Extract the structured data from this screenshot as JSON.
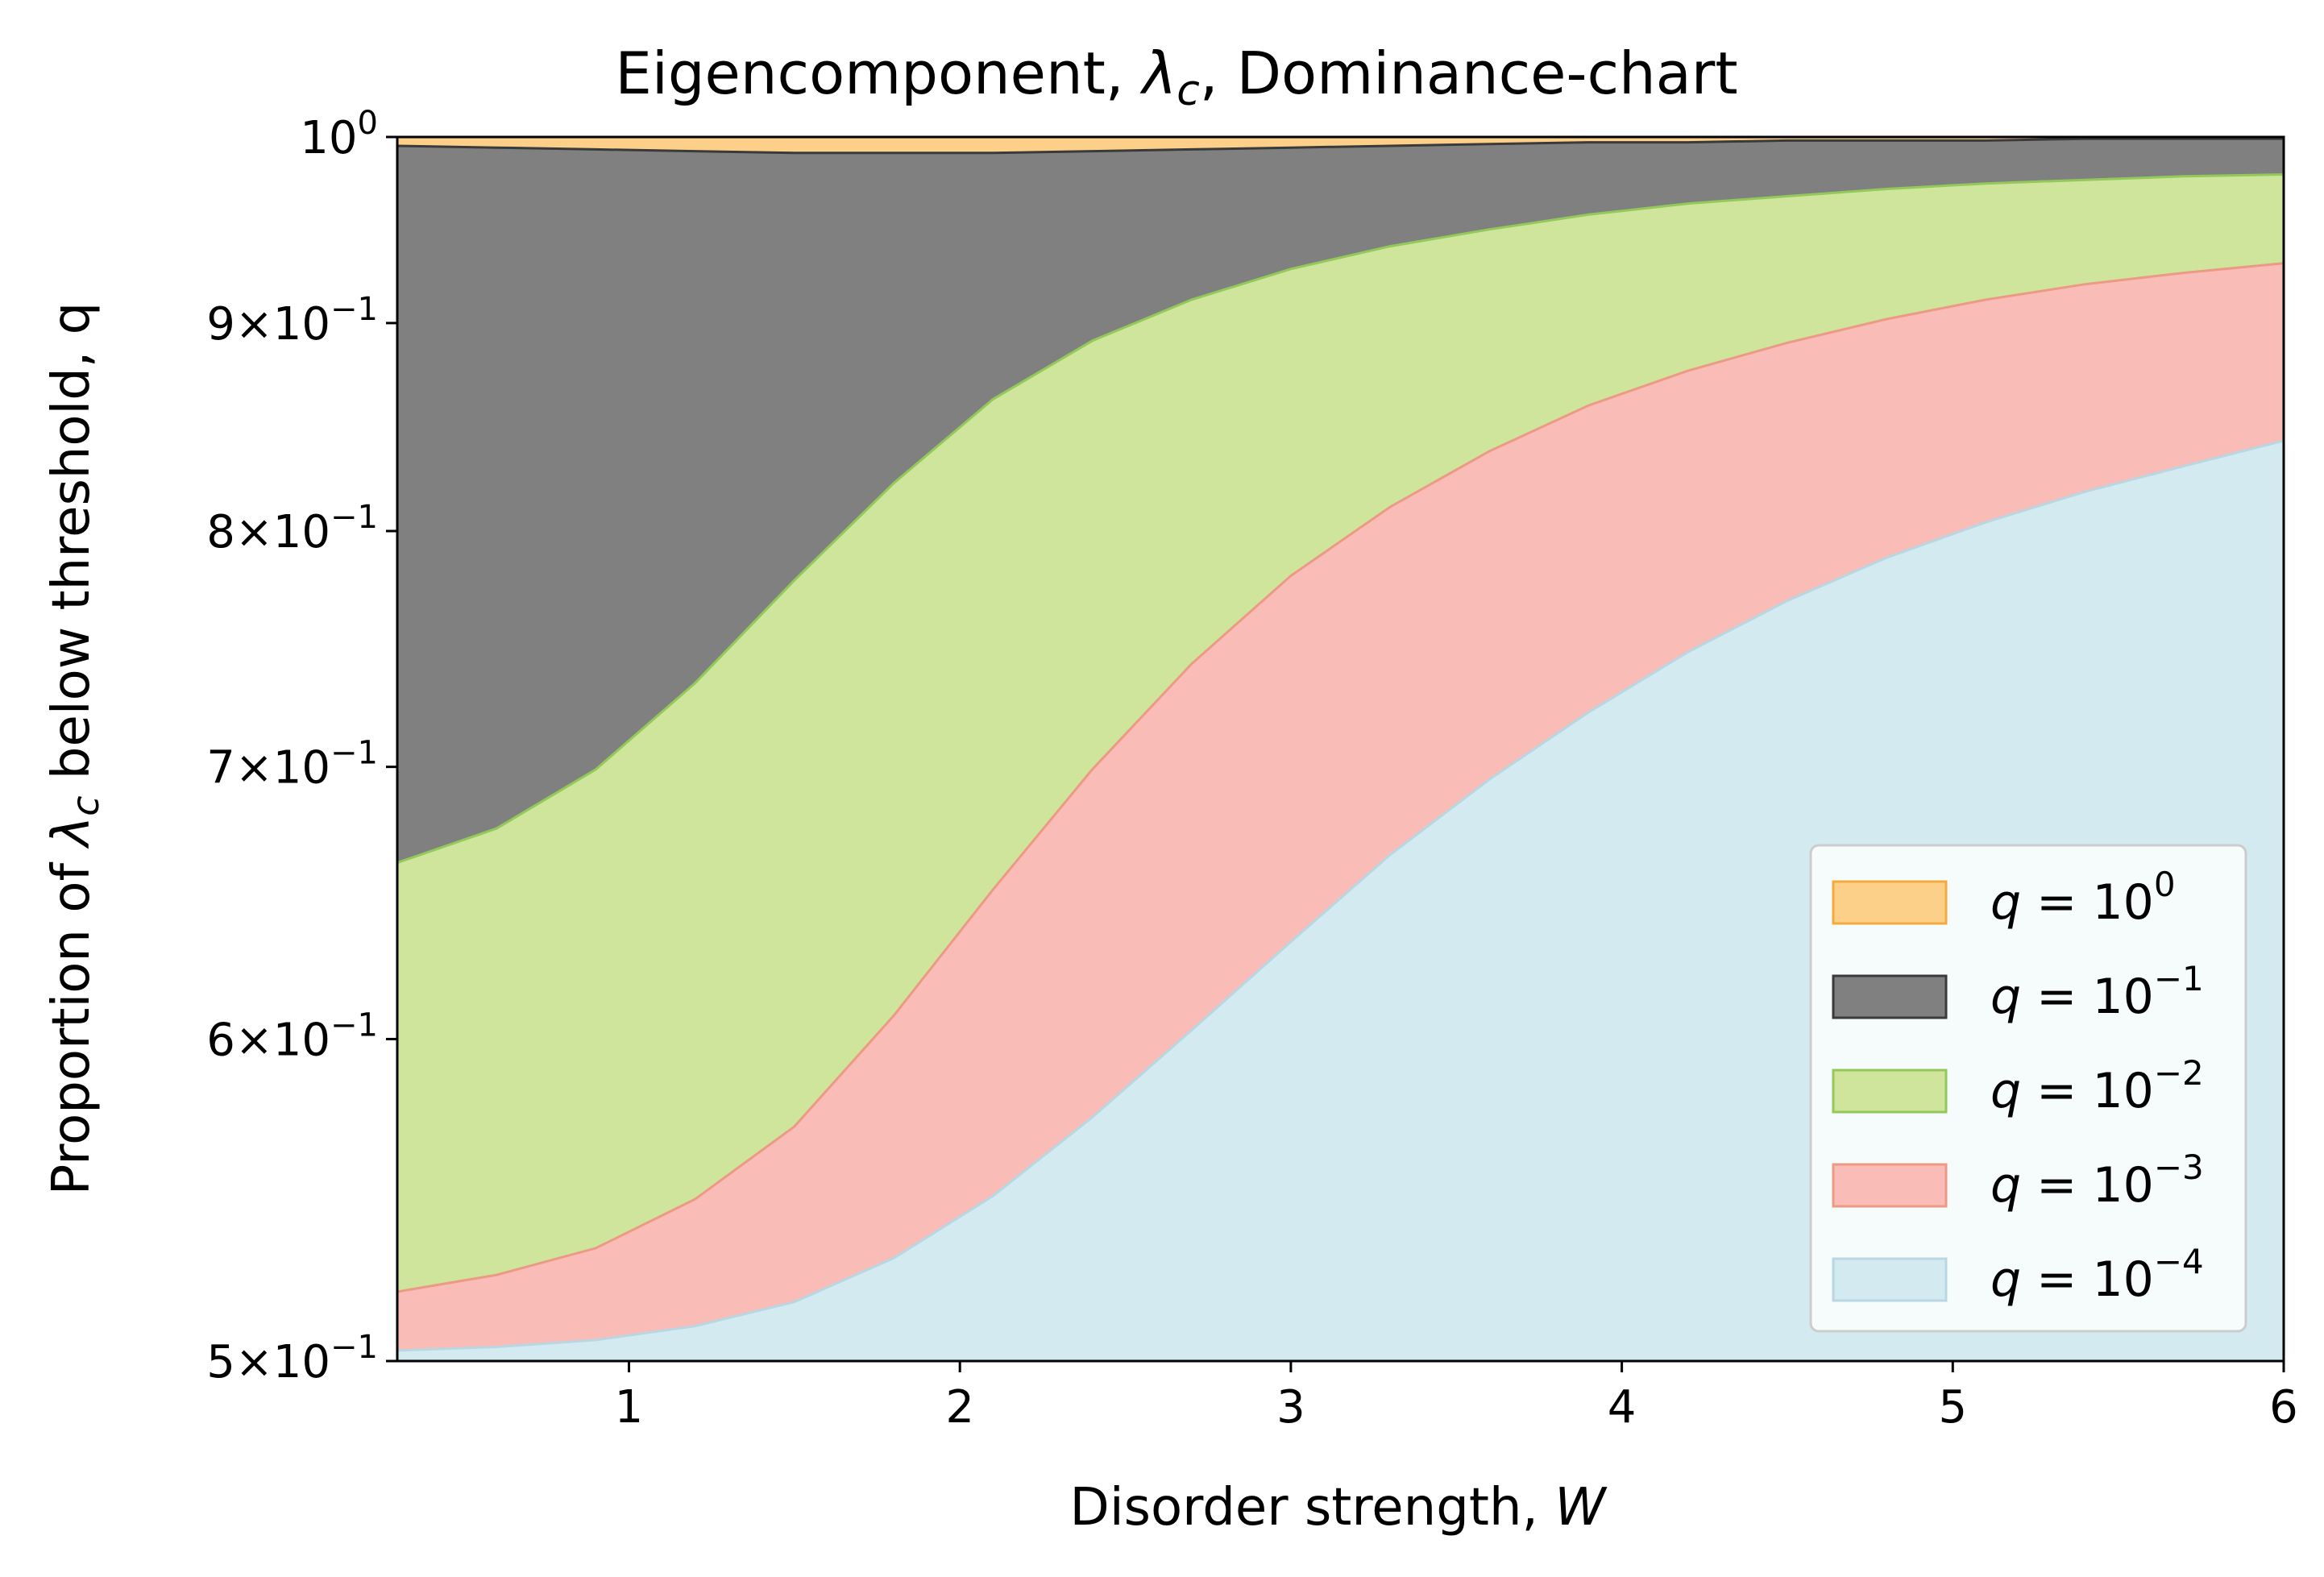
{
  "chart_data": {
    "type": "area",
    "title": "Eigencomponent, λc, Dominance-chart",
    "title_parts": {
      "pre": "Eigencomponent, ",
      "sym": "λ",
      "sub": "c",
      "post": ", Dominance-chart"
    },
    "xlabel": "Disorder strength, W",
    "xlabel_parts": {
      "pre": "Disorder strength, ",
      "sym": "W"
    },
    "ylabel": "Proportion of λc below threshold, q",
    "ylabel_parts": {
      "pre": "Proportion of ",
      "sym": "λ",
      "sub": "c",
      "post": " below threshold, q"
    },
    "xlim": [
      0.3,
      6.0
    ],
    "ylim": [
      0.5,
      1.0
    ],
    "yscale": "log",
    "grid": false,
    "legend_position": "lower-right",
    "x_ticks": [
      {
        "value": 1,
        "label": "1"
      },
      {
        "value": 2,
        "label": "2"
      },
      {
        "value": 3,
        "label": "3"
      },
      {
        "value": 4,
        "label": "4"
      },
      {
        "value": 5,
        "label": "5"
      },
      {
        "value": 6,
        "label": "6"
      }
    ],
    "y_ticks": [
      {
        "value": 0.5,
        "mant": "5",
        "exp": "−1"
      },
      {
        "value": 0.6,
        "mant": "6",
        "exp": "−1"
      },
      {
        "value": 0.7,
        "mant": "7",
        "exp": "−1"
      },
      {
        "value": 0.8,
        "mant": "8",
        "exp": "−1"
      },
      {
        "value": 0.9,
        "mant": "9",
        "exp": "−1"
      },
      {
        "value": 1.0,
        "mant": "",
        "exp": "0"
      }
    ],
    "x": [
      0.3,
      0.6,
      0.9,
      1.2,
      1.5,
      1.8,
      2.1,
      2.4,
      2.7,
      3.0,
      3.3,
      3.6,
      3.9,
      4.2,
      4.5,
      4.8,
      5.1,
      5.4,
      5.7,
      6.0
    ],
    "series": [
      {
        "name": "q = 10^0",
        "exp": "0",
        "color": "#f5b342",
        "fill": "#fdd08a",
        "edge": "#f2ab3c",
        "values": [
          1.0,
          1.0,
          1.0,
          1.0,
          1.0,
          1.0,
          1.0,
          1.0,
          1.0,
          1.0,
          1.0,
          1.0,
          1.0,
          1.0,
          1.0,
          1.0,
          1.0,
          1.0,
          1.0,
          1.0
        ]
      },
      {
        "name": "q = 10^-1",
        "exp": "−1",
        "color": "#444444",
        "fill": "#808080",
        "edge": "#3a3a3a",
        "values": [
          0.995,
          0.994,
          0.993,
          0.992,
          0.991,
          0.991,
          0.991,
          0.992,
          0.993,
          0.994,
          0.995,
          0.996,
          0.997,
          0.997,
          0.998,
          0.998,
          0.998,
          0.999,
          0.999,
          0.999
        ]
      },
      {
        "name": "q = 10^-2",
        "exp": "−2",
        "color": "#a9d569",
        "fill": "#cfe59c",
        "edge": "#93c95a",
        "values": [
          0.663,
          0.676,
          0.699,
          0.734,
          0.778,
          0.822,
          0.862,
          0.891,
          0.912,
          0.928,
          0.94,
          0.949,
          0.957,
          0.963,
          0.967,
          0.971,
          0.974,
          0.976,
          0.978,
          0.979
        ]
      },
      {
        "name": "q = 10^-3",
        "exp": "−3",
        "color": "#f29b98",
        "fill": "#f9bcb7",
        "edge": "#ec9a85",
        "values": [
          0.52,
          0.525,
          0.533,
          0.548,
          0.571,
          0.608,
          0.653,
          0.699,
          0.742,
          0.78,
          0.811,
          0.837,
          0.859,
          0.876,
          0.89,
          0.902,
          0.912,
          0.92,
          0.926,
          0.931
        ]
      },
      {
        "name": "q = 10^-4",
        "exp": "−4",
        "color": "#a8d4e3",
        "fill": "#d3eaf0",
        "edge": "#b9d7e2",
        "values": [
          0.503,
          0.504,
          0.506,
          0.51,
          0.517,
          0.53,
          0.549,
          0.574,
          0.603,
          0.634,
          0.666,
          0.695,
          0.722,
          0.747,
          0.769,
          0.788,
          0.804,
          0.818,
          0.83,
          0.842
        ]
      }
    ]
  }
}
